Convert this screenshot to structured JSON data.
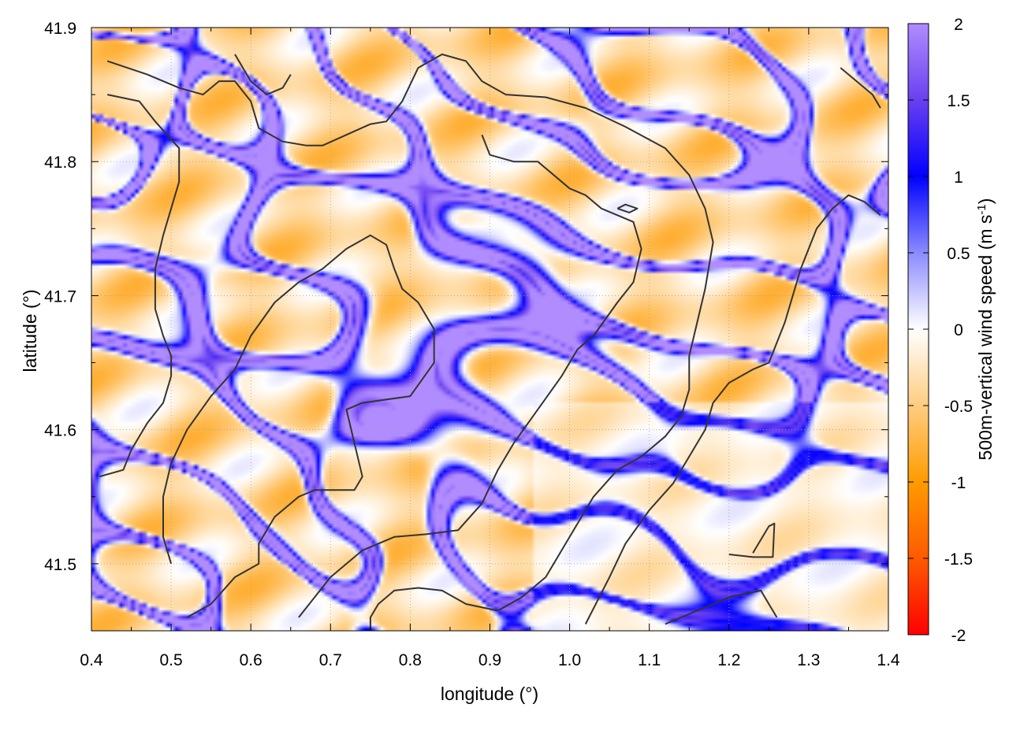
{
  "chart_data": {
    "type": "heatmap",
    "title": "",
    "xlabel": "longitude (°)",
    "ylabel": "latitude (°)",
    "colorbar_label": "500m-vertical wind speed (m s",
    "colorbar_label_sup": "-1",
    "colorbar_label_end": ")",
    "xlim": [
      0.4,
      1.4
    ],
    "ylim": [
      41.45,
      41.9
    ],
    "clim": [
      -2,
      2
    ],
    "x_ticks": [
      0.4,
      0.5,
      0.6,
      0.7,
      0.8,
      0.9,
      1.0,
      1.1,
      1.2,
      1.3,
      1.4
    ],
    "x_tick_labels": [
      "0.4",
      "0.5",
      "0.6",
      "0.7",
      "0.8",
      "0.9",
      "1.0",
      "1.1",
      "1.2",
      "1.3",
      "1.4"
    ],
    "y_ticks": [
      41.5,
      41.6,
      41.7,
      41.8,
      41.9
    ],
    "y_tick_labels": [
      "41.5",
      "41.6",
      "41.7",
      "41.8",
      "41.9"
    ],
    "colorbar_ticks": [
      2,
      1.5,
      1,
      0.5,
      0,
      -0.5,
      -1,
      -1.5,
      -2
    ],
    "colorbar_tick_labels": [
      "2",
      "1.5",
      "1",
      "0.5",
      "0",
      "-0.5",
      "-1",
      "-1.5",
      "-2"
    ],
    "colorscale": [
      {
        "v": -2,
        "color": "#ff0000"
      },
      {
        "v": -1.5,
        "color": "#ff5a00"
      },
      {
        "v": -1,
        "color": "#ff9b00"
      },
      {
        "v": -0.5,
        "color": "#ffcd80"
      },
      {
        "v": 0,
        "color": "#ffffff"
      },
      {
        "v": 0.5,
        "color": "#8b8bff"
      },
      {
        "v": 1,
        "color": "#0000ff"
      },
      {
        "v": 1.5,
        "color": "#6a40f0"
      },
      {
        "v": 2,
        "color": "#b08cff"
      }
    ],
    "grid": true,
    "contour_color": "#333333",
    "contours": [
      [
        [
          0.42,
          41.875
        ],
        [
          0.47,
          41.865
        ],
        [
          0.51,
          41.855
        ],
        [
          0.54,
          41.85
        ],
        [
          0.56,
          41.86
        ],
        [
          0.58,
          41.86
        ],
        [
          0.6,
          41.845
        ],
        [
          0.61,
          41.825
        ],
        [
          0.64,
          41.815
        ],
        [
          0.67,
          41.812
        ],
        [
          0.69,
          41.812
        ],
        [
          0.72,
          41.82
        ],
        [
          0.75,
          41.828
        ],
        [
          0.77,
          41.83
        ],
        [
          0.79,
          41.845
        ],
        [
          0.81,
          41.87
        ],
        [
          0.84,
          41.88
        ],
        [
          0.87,
          41.875
        ],
        [
          0.89,
          41.86
        ],
        [
          0.92,
          41.85
        ],
        [
          0.97,
          41.848
        ],
        [
          1.02,
          41.84
        ],
        [
          1.07,
          41.826
        ],
        [
          1.12,
          41.81
        ],
        [
          1.15,
          41.79
        ],
        [
          1.17,
          41.765
        ],
        [
          1.18,
          41.74
        ],
        [
          1.17,
          41.705
        ],
        [
          1.16,
          41.68
        ],
        [
          1.15,
          41.655
        ],
        [
          1.15,
          41.63
        ],
        [
          1.14,
          41.61
        ],
        [
          1.12,
          41.595
        ],
        [
          1.09,
          41.58
        ],
        [
          1.06,
          41.57
        ],
        [
          1.03,
          41.55
        ],
        [
          1.0,
          41.52
        ],
        [
          0.97,
          41.49
        ],
        [
          0.94,
          41.475
        ],
        [
          0.91,
          41.465
        ],
        [
          0.87,
          41.47
        ],
        [
          0.84,
          41.48
        ],
        [
          0.81,
          41.482
        ],
        [
          0.78,
          41.48
        ],
        [
          0.76,
          41.47
        ],
        [
          0.75,
          41.46
        ],
        [
          0.75,
          41.45
        ]
      ],
      [
        [
          0.42,
          41.85
        ],
        [
          0.46,
          41.845
        ],
        [
          0.48,
          41.83
        ],
        [
          0.51,
          41.81
        ],
        [
          0.51,
          41.785
        ],
        [
          0.5,
          41.765
        ],
        [
          0.49,
          41.745
        ],
        [
          0.48,
          41.72
        ],
        [
          0.48,
          41.69
        ],
        [
          0.49,
          41.67
        ],
        [
          0.5,
          41.655
        ],
        [
          0.5,
          41.64
        ],
        [
          0.49,
          41.62
        ],
        [
          0.47,
          41.605
        ],
        [
          0.45,
          41.585
        ],
        [
          0.44,
          41.57
        ],
        [
          0.41,
          41.565
        ]
      ],
      [
        [
          0.52,
          41.46
        ],
        [
          0.55,
          41.47
        ],
        [
          0.58,
          41.49
        ],
        [
          0.61,
          41.5
        ],
        [
          0.61,
          41.515
        ],
        [
          0.63,
          41.535
        ],
        [
          0.66,
          41.55
        ],
        [
          0.68,
          41.555
        ],
        [
          0.73,
          41.555
        ],
        [
          0.74,
          41.565
        ],
        [
          0.73,
          41.59
        ],
        [
          0.72,
          41.615
        ],
        [
          0.74,
          41.62
        ],
        [
          0.8,
          41.625
        ],
        [
          0.83,
          41.65
        ],
        [
          0.83,
          41.675
        ],
        [
          0.81,
          41.695
        ],
        [
          0.79,
          41.705
        ],
        [
          0.78,
          41.72
        ],
        [
          0.77,
          41.738
        ],
        [
          0.75,
          41.745
        ],
        [
          0.72,
          41.735
        ],
        [
          0.69,
          41.72
        ],
        [
          0.66,
          41.71
        ],
        [
          0.63,
          41.695
        ],
        [
          0.6,
          41.67
        ],
        [
          0.58,
          41.645
        ],
        [
          0.55,
          41.625
        ],
        [
          0.52,
          41.6
        ],
        [
          0.5,
          41.575
        ],
        [
          0.49,
          41.55
        ],
        [
          0.49,
          41.52
        ],
        [
          0.5,
          41.5
        ]
      ],
      [
        [
          0.58,
          41.88
        ],
        [
          0.6,
          41.86
        ],
        [
          0.62,
          41.85
        ],
        [
          0.64,
          41.855
        ],
        [
          0.65,
          41.865
        ]
      ],
      [
        [
          0.66,
          41.46
        ],
        [
          0.7,
          41.49
        ],
        [
          0.74,
          41.51
        ],
        [
          0.78,
          41.52
        ],
        [
          0.82,
          41.522
        ],
        [
          0.86,
          41.525
        ],
        [
          0.89,
          41.545
        ],
        [
          0.91,
          41.57
        ],
        [
          0.93,
          41.59
        ],
        [
          0.96,
          41.615
        ],
        [
          0.99,
          41.64
        ],
        [
          1.01,
          41.66
        ],
        [
          1.03,
          41.67
        ],
        [
          1.06,
          41.695
        ],
        [
          1.08,
          41.71
        ],
        [
          1.09,
          41.735
        ],
        [
          1.08,
          41.755
        ],
        [
          1.06,
          41.76
        ],
        [
          1.04,
          41.765
        ],
        [
          1.02,
          41.775
        ],
        [
          1.0,
          41.78
        ],
        [
          0.98,
          41.79
        ],
        [
          0.96,
          41.8
        ],
        [
          0.93,
          41.8
        ],
        [
          0.9,
          41.805
        ],
        [
          0.89,
          41.82
        ]
      ],
      [
        [
          1.02,
          41.455
        ],
        [
          1.05,
          41.49
        ],
        [
          1.07,
          41.515
        ],
        [
          1.1,
          41.54
        ],
        [
          1.13,
          41.56
        ],
        [
          1.15,
          41.58
        ],
        [
          1.17,
          41.6
        ],
        [
          1.18,
          41.62
        ],
        [
          1.2,
          41.635
        ],
        [
          1.23,
          41.645
        ],
        [
          1.25,
          41.65
        ],
        [
          1.27,
          41.68
        ],
        [
          1.29,
          41.72
        ],
        [
          1.31,
          41.75
        ],
        [
          1.33,
          41.765
        ],
        [
          1.35,
          41.775
        ],
        [
          1.37,
          41.77
        ],
        [
          1.39,
          41.76
        ]
      ],
      [
        [
          1.12,
          41.455
        ],
        [
          1.16,
          41.465
        ],
        [
          1.2,
          41.475
        ],
        [
          1.24,
          41.48
        ],
        [
          1.26,
          41.46
        ]
      ],
      [
        [
          1.2,
          41.507
        ],
        [
          1.23,
          41.505
        ],
        [
          1.255,
          41.505
        ],
        [
          1.257,
          41.53
        ],
        [
          1.25,
          41.528
        ],
        [
          1.23,
          41.508
        ]
      ],
      [
        [
          1.06,
          41.765
        ],
        [
          1.075,
          41.762
        ],
        [
          1.085,
          41.765
        ],
        [
          1.07,
          41.768
        ],
        [
          1.06,
          41.765
        ]
      ],
      [
        [
          1.34,
          41.87
        ],
        [
          1.36,
          41.86
        ],
        [
          1.38,
          41.85
        ],
        [
          1.39,
          41.84
        ]
      ]
    ]
  }
}
